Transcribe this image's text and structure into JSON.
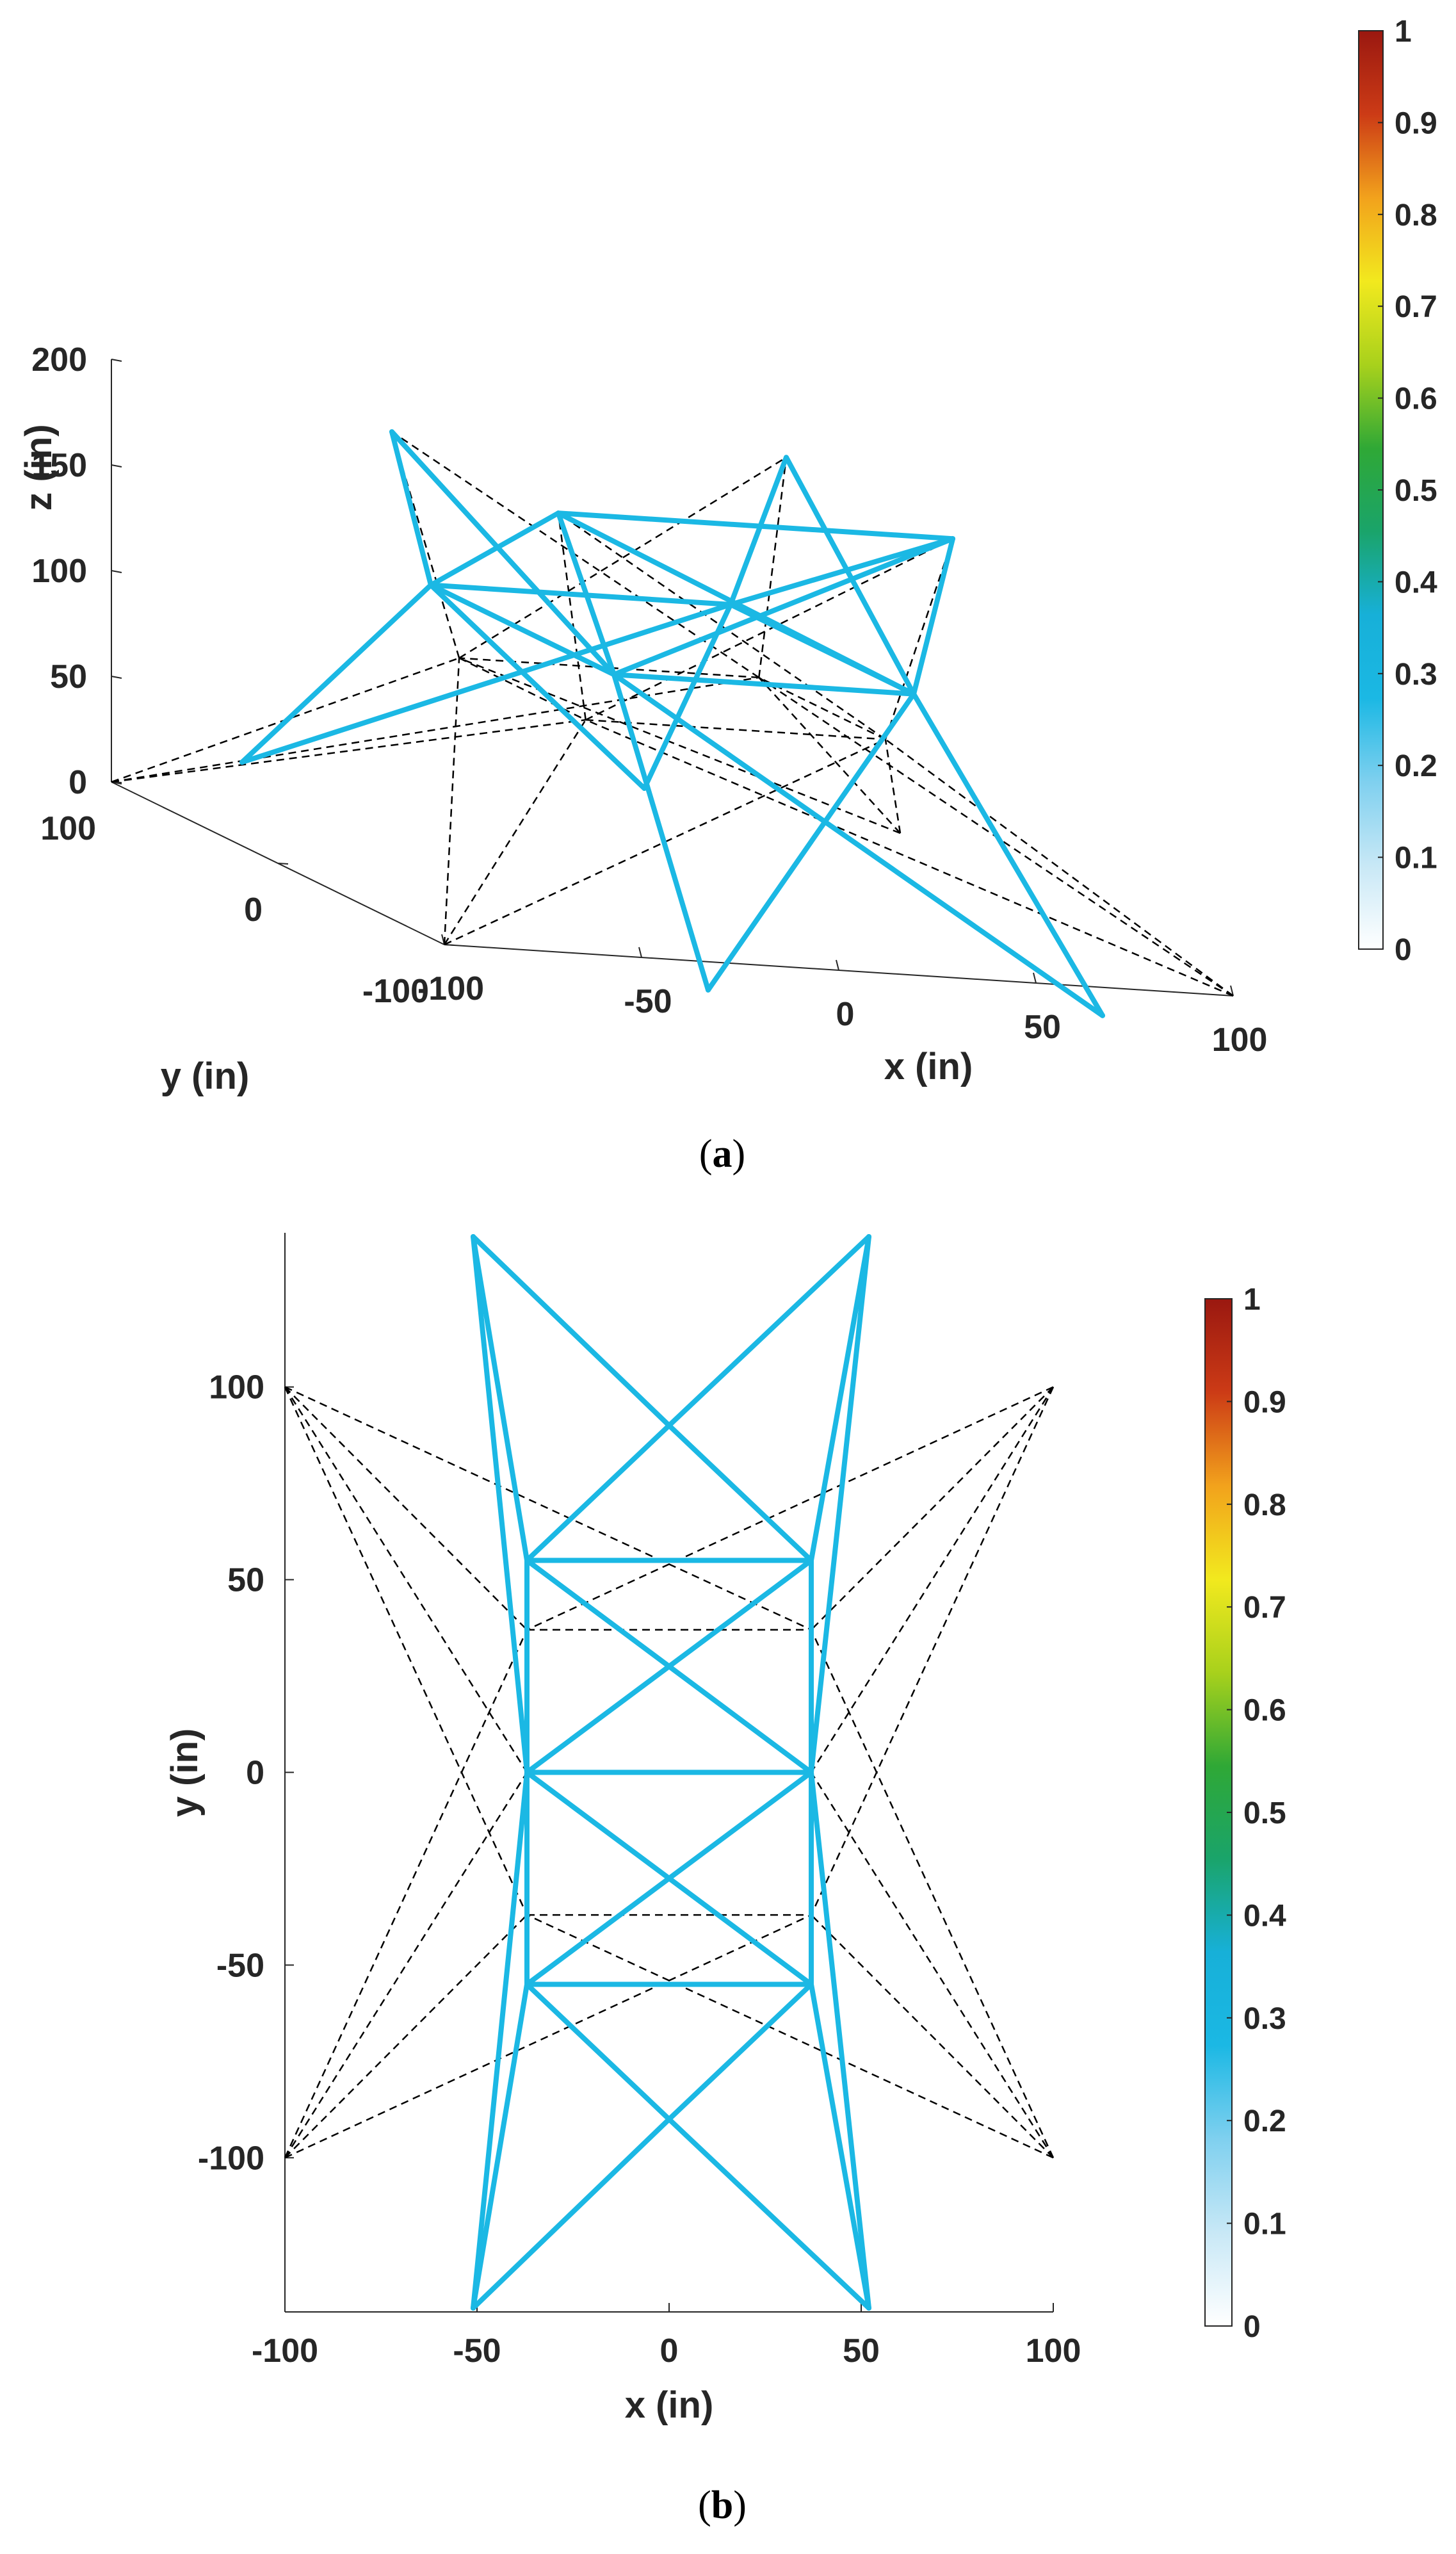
{
  "chart_data": [
    {
      "panel": "a",
      "type": "3d-truss-plot",
      "caption_label": "a",
      "xlabel": "x (in)",
      "ylabel": "y (in)",
      "zlabel": "z (in)",
      "xticks": [
        -100,
        -50,
        0,
        50,
        100
      ],
      "yticks": [
        100,
        0,
        -100
      ],
      "zticks": [
        0,
        50,
        100,
        150,
        200
      ],
      "xlim": [
        -100,
        100
      ],
      "ylim": [
        -100,
        100
      ],
      "zlim": [
        0,
        200
      ],
      "member_color": "#1bb8e4",
      "ground_structure_color": "#000000",
      "nodes": {
        "g1": [
          -50,
          -140,
          0
        ],
        "g2": [
          50,
          -140,
          0
        ],
        "g3": [
          52,
          140,
          0
        ],
        "g4": [
          -50,
          140,
          0
        ],
        "m1": [
          -38,
          -55,
          118
        ],
        "m2": [
          38,
          -55,
          118
        ],
        "m3": [
          38,
          55,
          118
        ],
        "m4": [
          -38,
          55,
          118
        ],
        "t1": [
          -50,
          -50,
          191
        ],
        "t2": [
          50,
          -50,
          191
        ],
        "t3": [
          50,
          50,
          191
        ],
        "t4": [
          -50,
          50,
          191
        ],
        "s1": [
          -100,
          -100,
          0
        ],
        "s2": [
          100,
          -100,
          0
        ],
        "s3": [
          100,
          100,
          0
        ],
        "s4": [
          -100,
          100,
          0
        ],
        "r1": [
          -38,
          -38,
          90
        ],
        "r2": [
          38,
          -38,
          90
        ],
        "r3": [
          38,
          38,
          90
        ],
        "r4": [
          -38,
          38,
          90
        ],
        "p1": [
          -50,
          -50,
          191
        ],
        "p2": [
          50,
          -50,
          191
        ],
        "p3": [
          50,
          50,
          191
        ],
        "p4": [
          -50,
          50,
          191
        ]
      },
      "members": [
        [
          "g1",
          "m1"
        ],
        [
          "g2",
          "m2"
        ],
        [
          "g3",
          "m3"
        ],
        [
          "g4",
          "m4"
        ],
        [
          "g1",
          "m2"
        ],
        [
          "g2",
          "m1"
        ],
        [
          "g3",
          "m4"
        ],
        [
          "g4",
          "m3"
        ],
        [
          "m1",
          "m2"
        ],
        [
          "m2",
          "m3"
        ],
        [
          "m3",
          "m4"
        ],
        [
          "m4",
          "m1"
        ],
        [
          "m1",
          "t1"
        ],
        [
          "m2",
          "t2"
        ],
        [
          "m3",
          "t3"
        ],
        [
          "m4",
          "t4"
        ],
        [
          "m1",
          "t4"
        ],
        [
          "m4",
          "t1"
        ],
        [
          "m2",
          "t3"
        ],
        [
          "m3",
          "t2"
        ],
        [
          "m1",
          "t2"
        ],
        [
          "m2",
          "t1"
        ],
        [
          "t1",
          "t2"
        ]
      ],
      "dashed": [
        [
          "s1",
          "r1"
        ],
        [
          "s1",
          "r2"
        ],
        [
          "s2",
          "r2"
        ],
        [
          "s2",
          "r1"
        ],
        [
          "s3",
          "r3"
        ],
        [
          "s3",
          "r4"
        ],
        [
          "s4",
          "r4"
        ],
        [
          "s4",
          "r3"
        ],
        [
          "r1",
          "r2"
        ],
        [
          "r2",
          "r3"
        ],
        [
          "r3",
          "r4"
        ],
        [
          "r4",
          "r1"
        ],
        [
          "r1",
          "p1"
        ],
        [
          "r2",
          "p2"
        ],
        [
          "r3",
          "p3"
        ],
        [
          "r4",
          "p4"
        ],
        [
          "r1",
          "p2"
        ],
        [
          "r2",
          "p1"
        ],
        [
          "r3",
          "p4"
        ],
        [
          "r4",
          "p3"
        ],
        [
          "s1",
          "r4"
        ],
        [
          "s2",
          "r3"
        ],
        [
          "s3",
          "r2"
        ],
        [
          "s4",
          "r1"
        ]
      ],
      "colorbar": {
        "ticks": [
          0,
          0.1,
          0.2,
          0.3,
          0.4,
          0.5,
          0.6,
          0.7,
          0.8,
          0.9,
          1
        ],
        "colors": [
          "#ffffff",
          "#c8e8f6",
          "#7fd0ef",
          "#1bb8e4",
          "#17b0d8",
          "#1aa46a",
          "#2fa836",
          "#a8d11c",
          "#f2e91e",
          "#f2a21c",
          "#cc3b16",
          "#9a1810"
        ]
      }
    },
    {
      "panel": "b",
      "type": "2d-truss-plot",
      "caption_label": "b",
      "xlabel": "x (in)",
      "ylabel": "y (in)",
      "xticks": [
        -100,
        -50,
        0,
        50,
        100
      ],
      "yticks": [
        100,
        50,
        0,
        -50,
        -100
      ],
      "xlim": [
        -100,
        100
      ],
      "ylim": [
        -140,
        140
      ],
      "member_color": "#1bb8e4",
      "ground_structure_color": "#000000",
      "nodes": {
        "A": [
          -51,
          139
        ],
        "B": [
          52,
          139
        ],
        "C": [
          -51,
          -139
        ],
        "D": [
          52,
          -139
        ],
        "E": [
          -37,
          55
        ],
        "F": [
          37,
          55
        ],
        "G": [
          -37,
          0
        ],
        "H": [
          37,
          0
        ],
        "I": [
          -37,
          -55
        ],
        "J": [
          37,
          -55
        ],
        "X": [
          0,
          90
        ],
        "Y": [
          0,
          -90
        ],
        "S1": [
          -100,
          100
        ],
        "S2": [
          100,
          100
        ],
        "S3": [
          -100,
          -100
        ],
        "S4": [
          100,
          -100
        ],
        "R1": [
          -37,
          37
        ],
        "R2": [
          37,
          37
        ],
        "R3": [
          -37,
          -37
        ],
        "R4": [
          37,
          -37
        ]
      },
      "members": [
        [
          "A",
          "E"
        ],
        [
          "A",
          "G"
        ],
        [
          "A",
          "X"
        ],
        [
          "B",
          "F"
        ],
        [
          "B",
          "H"
        ],
        [
          "B",
          "X"
        ],
        [
          "X",
          "E"
        ],
        [
          "X",
          "F"
        ],
        [
          "E",
          "F"
        ],
        [
          "E",
          "H"
        ],
        [
          "F",
          "G"
        ],
        [
          "G",
          "H"
        ],
        [
          "G",
          "J"
        ],
        [
          "H",
          "I"
        ],
        [
          "I",
          "J"
        ],
        [
          "I",
          "Y"
        ],
        [
          "J",
          "Y"
        ],
        [
          "C",
          "Y"
        ],
        [
          "D",
          "Y"
        ],
        [
          "C",
          "G"
        ],
        [
          "C",
          "I"
        ],
        [
          "D",
          "H"
        ],
        [
          "D",
          "J"
        ],
        [
          "E",
          "I"
        ],
        [
          "F",
          "J"
        ]
      ],
      "dashed": [
        [
          "S1",
          "R1"
        ],
        [
          "S1",
          "R3"
        ],
        [
          "S1",
          "R2"
        ],
        [
          "S1",
          "G"
        ],
        [
          "S2",
          "R2"
        ],
        [
          "S2",
          "R4"
        ],
        [
          "S2",
          "R1"
        ],
        [
          "S2",
          "H"
        ],
        [
          "S3",
          "R3"
        ],
        [
          "S3",
          "R1"
        ],
        [
          "S3",
          "R4"
        ],
        [
          "S3",
          "G"
        ],
        [
          "S4",
          "R4"
        ],
        [
          "S4",
          "R2"
        ],
        [
          "S4",
          "R3"
        ],
        [
          "S4",
          "H"
        ],
        [
          "R1",
          "R2"
        ],
        [
          "R3",
          "R4"
        ],
        [
          "R1",
          "R3"
        ],
        [
          "R2",
          "R4"
        ]
      ],
      "colorbar": {
        "ticks": [
          0,
          0.1,
          0.2,
          0.3,
          0.4,
          0.5,
          0.6,
          0.7,
          0.8,
          0.9,
          1
        ],
        "colors": [
          "#ffffff",
          "#c8e8f6",
          "#7fd0ef",
          "#1bb8e4",
          "#17b0d8",
          "#1aa46a",
          "#2fa836",
          "#a8d11c",
          "#f2e91e",
          "#f2a21c",
          "#cc3b16",
          "#9a1810"
        ]
      }
    }
  ]
}
